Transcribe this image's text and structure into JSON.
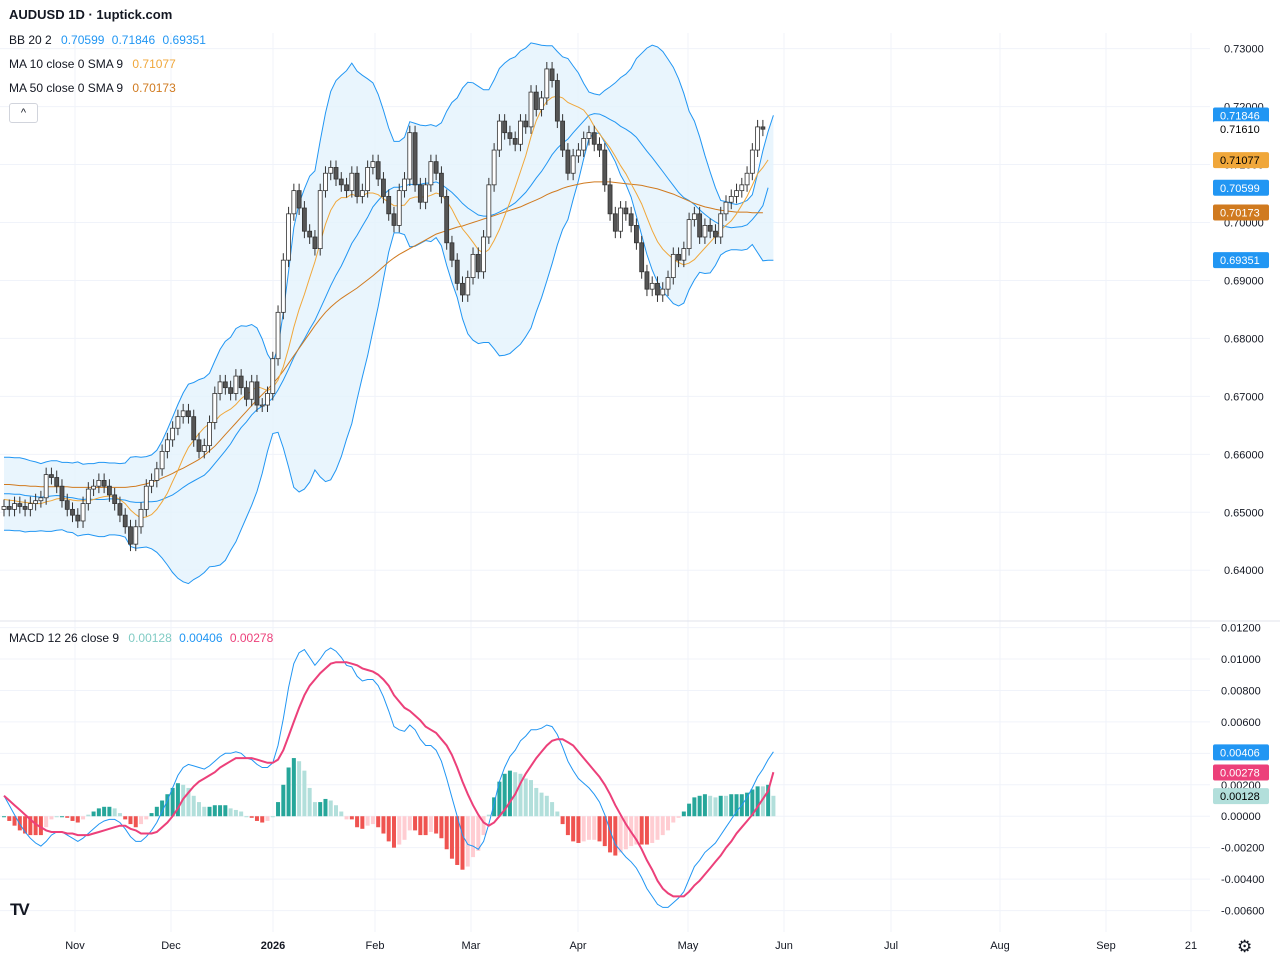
{
  "header": {
    "title": "AUDUSD 1D · 1uptick.com"
  },
  "legend": {
    "bb": {
      "label": "BB 20 2",
      "basis": "0.70599",
      "upper": "0.71846",
      "lower": "0.69351"
    },
    "ma10": {
      "label": "MA 10 close 0 SMA 9",
      "value": "0.71077"
    },
    "ma50": {
      "label": "MA 50 close 0 SMA 9",
      "value": "0.70173"
    },
    "macd": {
      "label": "MACD 12 26 close 9",
      "hist": "0.00128",
      "macd": "0.00406",
      "signal": "0.00278"
    }
  },
  "colors": {
    "up": "#26a69a",
    "down": "#ef5350",
    "candle_up": "#ffffff",
    "candle_down": "#555555",
    "bb_line": "#2196f3",
    "bb_fill": "#e3f2fd",
    "ma10": "#f0a73a",
    "ma50": "#d07a1f",
    "macd_line": "#2196f3",
    "signal_line": "#ec407a",
    "price_label": "#000000"
  },
  "icons": {
    "collapse": "chevron-up-icon",
    "settings": "gear-icon",
    "logo": "tradingview-logo"
  },
  "logo_text": "TV",
  "collapse_glyph": "^",
  "settings_glyph": "⚙",
  "chart_data": {
    "type": "candlestick",
    "symbol": "AUDUSD",
    "interval": "1D",
    "x_labels": [
      "Nov",
      "Dec",
      "2026",
      "Feb",
      "Mar",
      "Apr",
      "May",
      "Jun",
      "Jul",
      "Aug",
      "Sep",
      "21"
    ],
    "price_axis": {
      "range": [
        0.634,
        0.7327
      ],
      "ticks": [
        "0.73000",
        "0.72000",
        "0.71000",
        "0.70000",
        "0.69000",
        "0.68000",
        "0.67000",
        "0.66000",
        "0.65000",
        "0.64000"
      ]
    },
    "last_price": "0.71610",
    "price_labels": [
      {
        "name": "bb-upper",
        "value": "0.71846"
      },
      {
        "name": "last",
        "value": "0.71610"
      },
      {
        "name": "ma10",
        "value": "0.71077"
      },
      {
        "name": "bb-basis",
        "value": "0.70599"
      },
      {
        "name": "ma50",
        "value": "0.70173"
      },
      {
        "name": "bb-lower",
        "value": "0.69351"
      }
    ],
    "closes": [
      0.651,
      0.6505,
      0.6515,
      0.651,
      0.6505,
      0.6515,
      0.652,
      0.6525,
      0.6565,
      0.656,
      0.6545,
      0.652,
      0.6505,
      0.6495,
      0.6485,
      0.6515,
      0.654,
      0.6545,
      0.6555,
      0.6545,
      0.653,
      0.6515,
      0.6495,
      0.6475,
      0.6445,
      0.6475,
      0.6505,
      0.6545,
      0.6555,
      0.6575,
      0.6605,
      0.6625,
      0.6645,
      0.6665,
      0.6675,
      0.6665,
      0.6625,
      0.6605,
      0.6615,
      0.6655,
      0.6705,
      0.6725,
      0.6715,
      0.6705,
      0.6735,
      0.6715,
      0.6695,
      0.6725,
      0.6685,
      0.6685,
      0.6705,
      0.6765,
      0.6845,
      0.6935,
      0.7015,
      0.7055,
      0.7025,
      0.6985,
      0.6975,
      0.6955,
      0.7055,
      0.7085,
      0.7095,
      0.7075,
      0.7065,
      0.7055,
      0.7085,
      0.7045,
      0.7055,
      0.7095,
      0.7105,
      0.7075,
      0.7045,
      0.7015,
      0.6995,
      0.7055,
      0.7075,
      0.7155,
      0.7065,
      0.7035,
      0.7065,
      0.7105,
      0.7085,
      0.7045,
      0.6965,
      0.6935,
      0.6895,
      0.6875,
      0.6905,
      0.6945,
      0.6915,
      0.6975,
      0.7065,
      0.7125,
      0.7175,
      0.7155,
      0.7145,
      0.7135,
      0.7175,
      0.7165,
      0.7225,
      0.7195,
      0.7215,
      0.7265,
      0.7245,
      0.7175,
      0.7125,
      0.7085,
      0.7115,
      0.7125,
      0.7145,
      0.7155,
      0.7135,
      0.7125,
      0.7065,
      0.7015,
      0.6985,
      0.7025,
      0.7015,
      0.6995,
      0.6965,
      0.6915,
      0.6885,
      0.6895,
      0.6875,
      0.6885,
      0.6905,
      0.6945,
      0.6935,
      0.6955,
      0.7005,
      0.7015,
      0.6975,
      0.6995,
      0.6985,
      0.6975,
      0.7015,
      0.7035,
      0.7045,
      0.7055,
      0.7065,
      0.7085,
      0.7125,
      0.7165,
      0.7161
    ],
    "basis_line": [
      0.6532,
      0.6532,
      0.6531,
      0.6531,
      0.6529,
      0.6528,
      0.6527,
      0.6526,
      0.6527,
      0.6528,
      0.6529,
      0.6528,
      0.6526,
      0.6525,
      0.6523,
      0.6522,
      0.6523,
      0.6522,
      0.6522,
      0.6522,
      0.6523,
      0.6523,
      0.6522,
      0.6521,
      0.6518,
      0.6517,
      0.6517,
      0.6518,
      0.6518,
      0.6519,
      0.6522,
      0.6526,
      0.653,
      0.6536,
      0.6543,
      0.6549,
      0.6554,
      0.6559,
      0.6564,
      0.6573,
      0.6584,
      0.6595,
      0.6606,
      0.6618,
      0.6633,
      0.6646,
      0.6656,
      0.6668,
      0.6677,
      0.6683,
      0.6689,
      0.6697,
      0.6711,
      0.6728,
      0.6747,
      0.6767,
      0.6784,
      0.6799,
      0.6816,
      0.6831,
      0.6851,
      0.6871,
      0.6891,
      0.6909,
      0.6925,
      0.6944,
      0.6964,
      0.6978,
      0.6994,
      0.7009,
      0.7027,
      0.7038,
      0.7048,
      0.7056,
      0.7061,
      0.7061,
      0.7063,
      0.7066,
      0.7065,
      0.7066,
      0.7068,
      0.7068,
      0.707,
      0.7066,
      0.7059,
      0.7052,
      0.7043,
      0.7033,
      0.7025,
      0.7019,
      0.7013,
      0.7011,
      0.7011,
      0.7014,
      0.7018,
      0.7023,
      0.7028,
      0.7034,
      0.7043,
      0.7052,
      0.7064,
      0.7077,
      0.7088,
      0.7102,
      0.7117,
      0.7128,
      0.7137,
      0.7144,
      0.7155,
      0.7165,
      0.7175,
      0.7185,
      0.7188,
      0.7187,
      0.7183,
      0.7178,
      0.7173,
      0.7166,
      0.7161,
      0.7155,
      0.7147,
      0.7135,
      0.7123,
      0.7112,
      0.71,
      0.7088,
      0.7076,
      0.7064,
      0.7052,
      0.7043,
      0.7038,
      0.7031,
      0.7022,
      0.7014,
      0.7007,
      0.7001,
      0.6996,
      0.6993,
      0.6991,
      0.6992,
      0.6993,
      0.6996,
      0.7005,
      0.7016,
      0.7029,
      0.706
    ],
    "bb_upper": [
      0.6595,
      0.6595,
      0.6594,
      0.6594,
      0.6592,
      0.6589,
      0.6587,
      0.6584,
      0.6587,
      0.6589,
      0.6589,
      0.6586,
      0.6586,
      0.6585,
      0.6587,
      0.6583,
      0.6584,
      0.6584,
      0.6586,
      0.6586,
      0.6585,
      0.6585,
      0.6584,
      0.6585,
      0.6595,
      0.6596,
      0.6595,
      0.6596,
      0.6599,
      0.6607,
      0.6623,
      0.6643,
      0.6664,
      0.6686,
      0.6706,
      0.6721,
      0.6724,
      0.6729,
      0.6732,
      0.674,
      0.6761,
      0.6781,
      0.6795,
      0.6802,
      0.6817,
      0.6822,
      0.6821,
      0.6824,
      0.6818,
      0.6799,
      0.6773,
      0.6758,
      0.6784,
      0.6845,
      0.6916,
      0.6991,
      0.7033,
      0.7058,
      0.708,
      0.7089,
      0.7141,
      0.7189,
      0.7226,
      0.7245,
      0.7254,
      0.7262,
      0.7275,
      0.7261,
      0.7254,
      0.7248,
      0.7241,
      0.7221,
      0.7194,
      0.7163,
      0.714,
      0.714,
      0.7147,
      0.7174,
      0.7171,
      0.7168,
      0.7167,
      0.7169,
      0.7166,
      0.7172,
      0.7192,
      0.7207,
      0.7215,
      0.7232,
      0.7242,
      0.7241,
      0.7235,
      0.7229,
      0.7229,
      0.7246,
      0.7266,
      0.7275,
      0.7282,
      0.7286,
      0.7296,
      0.7301,
      0.731,
      0.7308,
      0.7306,
      0.7305,
      0.7305,
      0.7295,
      0.7286,
      0.7283,
      0.727,
      0.7258,
      0.724,
      0.7225,
      0.7222,
      0.722,
      0.7228,
      0.7234,
      0.7241,
      0.725,
      0.7256,
      0.7266,
      0.7283,
      0.7292,
      0.7301,
      0.7306,
      0.7303,
      0.7295,
      0.7282,
      0.7268,
      0.7248,
      0.7223,
      0.7192,
      0.7175,
      0.7148,
      0.7116,
      0.7087,
      0.706,
      0.7038,
      0.7036,
      0.7033,
      0.7031,
      0.7034,
      0.7038,
      0.7048,
      0.7084,
      0.7124,
      0.7157,
      0.7185
    ],
    "bb_lower": [
      0.6469,
      0.6469,
      0.6468,
      0.6468,
      0.6466,
      0.6467,
      0.6467,
      0.6468,
      0.6467,
      0.6467,
      0.6469,
      0.647,
      0.6466,
      0.6465,
      0.6459,
      0.6461,
      0.6462,
      0.646,
      0.6458,
      0.6458,
      0.6461,
      0.6461,
      0.646,
      0.6457,
      0.6441,
      0.6438,
      0.6439,
      0.644,
      0.6437,
      0.6431,
      0.6421,
      0.6409,
      0.6396,
      0.6386,
      0.638,
      0.6377,
      0.6384,
      0.6389,
      0.6396,
      0.6406,
      0.6407,
      0.6409,
      0.6417,
      0.6434,
      0.6449,
      0.647,
      0.6491,
      0.6512,
      0.6536,
      0.6567,
      0.6605,
      0.6636,
      0.6638,
      0.6611,
      0.6578,
      0.6543,
      0.6535,
      0.654,
      0.6552,
      0.6573,
      0.6561,
      0.6553,
      0.6556,
      0.6573,
      0.6596,
      0.6626,
      0.6653,
      0.6695,
      0.6734,
      0.677,
      0.6813,
      0.6855,
      0.6902,
      0.6949,
      0.6982,
      0.6982,
      0.6979,
      0.6958,
      0.6959,
      0.6964,
      0.6969,
      0.6967,
      0.6974,
      0.696,
      0.6926,
      0.6897,
      0.6871,
      0.6834,
      0.6808,
      0.6797,
      0.6791,
      0.6793,
      0.6793,
      0.6782,
      0.677,
      0.6771,
      0.6774,
      0.6782,
      0.679,
      0.6803,
      0.6818,
      0.6846,
      0.687,
      0.6899,
      0.6929,
      0.6961,
      0.6988,
      0.7005,
      0.704,
      0.7072,
      0.711,
      0.7145,
      0.7154,
      0.7154,
      0.7138,
      0.7122,
      0.7105,
      0.7082,
      0.7066,
      0.7044,
      0.7011,
      0.6978,
      0.6945,
      0.6918,
      0.6897,
      0.6881,
      0.6871,
      0.686,
      0.6856,
      0.6861,
      0.6884,
      0.6901,
      0.6914,
      0.6912,
      0.6913,
      0.6926,
      0.6944,
      0.695,
      0.6953,
      0.6953,
      0.6952,
      0.6954,
      0.6962,
      0.6948,
      0.6934,
      0.6935,
      0.6935
    ],
    "ma10_line": [
      0.6522,
      0.6521,
      0.652,
      0.6518,
      0.6517,
      0.6516,
      0.6515,
      0.6515,
      0.6518,
      0.652,
      0.6523,
      0.6524,
      0.6523,
      0.6521,
      0.652,
      0.652,
      0.652,
      0.6522,
      0.6525,
      0.6527,
      0.6528,
      0.6527,
      0.6522,
      0.6515,
      0.6504,
      0.6496,
      0.649,
      0.6492,
      0.6496,
      0.6505,
      0.6518,
      0.6533,
      0.6553,
      0.6572,
      0.6594,
      0.6612,
      0.6624,
      0.6636,
      0.6646,
      0.6653,
      0.6657,
      0.6667,
      0.6673,
      0.6678,
      0.6686,
      0.6696,
      0.6703,
      0.671,
      0.6717,
      0.6714,
      0.671,
      0.6715,
      0.6728,
      0.6751,
      0.6783,
      0.6819,
      0.685,
      0.6876,
      0.6905,
      0.6932,
      0.6965,
      0.6997,
      0.7021,
      0.7036,
      0.7043,
      0.7043,
      0.7049,
      0.7045,
      0.7046,
      0.7051,
      0.7051,
      0.7048,
      0.7041,
      0.7035,
      0.7029,
      0.7029,
      0.703,
      0.7041,
      0.7044,
      0.7044,
      0.7044,
      0.7047,
      0.7051,
      0.7048,
      0.7037,
      0.7023,
      0.7005,
      0.6989,
      0.6978,
      0.6966,
      0.6953,
      0.6947,
      0.6953,
      0.6969,
      0.6988,
      0.7011,
      0.7035,
      0.7061,
      0.7088,
      0.7115,
      0.7148,
      0.7176,
      0.7195,
      0.7209,
      0.7216,
      0.7218,
      0.7215,
      0.7207,
      0.7203,
      0.7199,
      0.7194,
      0.7182,
      0.7166,
      0.7153,
      0.7141,
      0.7129,
      0.7114,
      0.7098,
      0.7084,
      0.7067,
      0.705,
      0.7032,
      0.7009,
      0.6986,
      0.6967,
      0.6954,
      0.6945,
      0.6937,
      0.6931,
      0.6927,
      0.693,
      0.6936,
      0.6946,
      0.6956,
      0.6966,
      0.6976,
      0.6987,
      0.6995,
      0.7003,
      0.7015,
      0.703,
      0.7045,
      0.7064,
      0.7084,
      0.7095,
      0.7108
    ],
    "ma50_line": [
      0.6548,
      0.6548,
      0.6547,
      0.6546,
      0.6546,
      0.6545,
      0.6545,
      0.6544,
      0.6544,
      0.6544,
      0.6544,
      0.6544,
      0.6544,
      0.6543,
      0.6543,
      0.6543,
      0.6543,
      0.6543,
      0.6543,
      0.6543,
      0.6543,
      0.6543,
      0.6543,
      0.6543,
      0.6544,
      0.6545,
      0.6547,
      0.6549,
      0.6552,
      0.6555,
      0.6559,
      0.6563,
      0.6567,
      0.6572,
      0.6576,
      0.6581,
      0.6586,
      0.6591,
      0.6598,
      0.6606,
      0.6614,
      0.6624,
      0.6634,
      0.6644,
      0.6654,
      0.6664,
      0.6674,
      0.6684,
      0.6694,
      0.6703,
      0.6712,
      0.6722,
      0.6732,
      0.6744,
      0.6757,
      0.677,
      0.6783,
      0.6796,
      0.6809,
      0.6822,
      0.6834,
      0.6845,
      0.6854,
      0.6862,
      0.6869,
      0.6875,
      0.6881,
      0.6887,
      0.6894,
      0.6901,
      0.6908,
      0.6916,
      0.6924,
      0.6932,
      0.6939,
      0.6945,
      0.695,
      0.6955,
      0.696,
      0.6965,
      0.697,
      0.6975,
      0.698,
      0.6983,
      0.6986,
      0.6989,
      0.6992,
      0.6994,
      0.6997,
      0.7,
      0.7003,
      0.7006,
      0.7009,
      0.7012,
      0.7015,
      0.7018,
      0.7021,
      0.7024,
      0.7027,
      0.7031,
      0.7035,
      0.7039,
      0.7043,
      0.7048,
      0.7052,
      0.7055,
      0.7059,
      0.7062,
      0.7064,
      0.7066,
      0.7068,
      0.7069,
      0.707,
      0.707,
      0.707,
      0.707,
      0.7069,
      0.7068,
      0.7067,
      0.7066,
      0.7065,
      0.7064,
      0.7062,
      0.706,
      0.7058,
      0.7055,
      0.7052,
      0.7049,
      0.7045,
      0.7041,
      0.7037,
      0.7033,
      0.703,
      0.7027,
      0.7025,
      0.7023,
      0.7021,
      0.702,
      0.7019,
      0.7018,
      0.7018,
      0.7018,
      0.7017,
      0.7017,
      0.7017
    ],
    "macd_axis": {
      "range": [
        -0.0066,
        0.0121
      ],
      "ticks": [
        "0.01200",
        "0.01000",
        "0.00800",
        "0.00600",
        "0.00400",
        "0.00200",
        "0.00000",
        "-0.00200",
        "-0.00400",
        "-0.00600"
      ]
    },
    "macd_labels": [
      {
        "name": "macd",
        "value": "0.00406"
      },
      {
        "name": "signal",
        "value": "0.00278"
      },
      {
        "name": "histogram",
        "value": "0.00128"
      }
    ],
    "macd_line": [
      0.0013,
      0.0007,
      0.0001,
      -0.0005,
      -0.001,
      -0.0014,
      -0.0017,
      -0.0019,
      -0.0016,
      -0.0012,
      -0.001,
      -0.001,
      -0.0012,
      -0.0014,
      -0.0016,
      -0.0014,
      -0.0011,
      -0.0008,
      -0.0005,
      -0.0003,
      -0.0002,
      -0.0002,
      -0.0004,
      -0.0008,
      -0.0013,
      -0.0016,
      -0.0016,
      -0.0013,
      -0.0009,
      -0.0004,
      0.0003,
      0.001,
      0.0018,
      0.0026,
      0.0031,
      0.0033,
      0.0032,
      0.0031,
      0.003,
      0.0032,
      0.0035,
      0.0038,
      0.004,
      0.004,
      0.0041,
      0.004,
      0.0037,
      0.0036,
      0.0033,
      0.0031,
      0.0031,
      0.0034,
      0.0045,
      0.0062,
      0.0082,
      0.0097,
      0.0104,
      0.0106,
      0.0101,
      0.0096,
      0.01,
      0.0105,
      0.0107,
      0.0105,
      0.0101,
      0.0096,
      0.0095,
      0.0089,
      0.0086,
      0.0087,
      0.0087,
      0.0083,
      0.0076,
      0.0067,
      0.0057,
      0.0055,
      0.0054,
      0.0058,
      0.0055,
      0.0049,
      0.0045,
      0.0045,
      0.0042,
      0.0035,
      0.0024,
      0.0012,
      0.0,
      -0.0012,
      -0.0018,
      -0.0019,
      -0.0021,
      -0.0016,
      -0.0005,
      0.0008,
      0.0022,
      0.0031,
      0.0038,
      0.0042,
      0.0048,
      0.0051,
      0.0055,
      0.0055,
      0.0056,
      0.0058,
      0.0057,
      0.0052,
      0.0044,
      0.0035,
      0.0029,
      0.0024,
      0.0021,
      0.0018,
      0.0014,
      0.0009,
      0.0001,
      -0.0009,
      -0.0018,
      -0.0022,
      -0.0026,
      -0.0029,
      -0.0033,
      -0.0039,
      -0.0046,
      -0.0051,
      -0.0056,
      -0.0058,
      -0.0058,
      -0.0055,
      -0.0052,
      -0.0048,
      -0.004,
      -0.0032,
      -0.0028,
      -0.0023,
      -0.002,
      -0.0017,
      -0.0012,
      -0.0007,
      -0.0002,
      0.0003,
      0.0007,
      0.0012,
      0.0018,
      0.0025,
      0.003,
      0.0036,
      0.0041
    ],
    "signal_line": [
      0.0013,
      0.001,
      0.0007,
      0.0004,
      0.0001,
      -0.0002,
      -0.0005,
      -0.0007,
      -0.0009,
      -0.001,
      -0.001,
      -0.001,
      -0.0011,
      -0.0011,
      -0.0012,
      -0.0012,
      -0.0012,
      -0.0011,
      -0.001,
      -0.0009,
      -0.0008,
      -0.0007,
      -0.0006,
      -0.0006,
      -0.0008,
      -0.0009,
      -0.0011,
      -0.0011,
      -0.0011,
      -0.001,
      -0.0007,
      -0.0004,
      0.0,
      0.0005,
      0.0011,
      0.0015,
      0.0019,
      0.0022,
      0.0024,
      0.0026,
      0.0028,
      0.0031,
      0.0033,
      0.0035,
      0.0037,
      0.0037,
      0.0037,
      0.0037,
      0.0036,
      0.0035,
      0.0034,
      0.0034,
      0.0036,
      0.0042,
      0.0051,
      0.006,
      0.0069,
      0.0077,
      0.0083,
      0.0087,
      0.0091,
      0.0094,
      0.0097,
      0.0098,
      0.0098,
      0.0098,
      0.0097,
      0.0096,
      0.0094,
      0.0093,
      0.0092,
      0.009,
      0.0087,
      0.0083,
      0.0077,
      0.0073,
      0.0069,
      0.0067,
      0.0064,
      0.0061,
      0.0057,
      0.0055,
      0.0053,
      0.0049,
      0.0045,
      0.0039,
      0.0031,
      0.0022,
      0.0014,
      0.0007,
      0.0001,
      -0.0004,
      -0.0006,
      -0.0004,
      -0.0,
      0.0004,
      0.0009,
      0.0014,
      0.0021,
      0.0027,
      0.0032,
      0.0037,
      0.0041,
      0.0045,
      0.0048,
      0.0049,
      0.0049,
      0.0047,
      0.0045,
      0.0041,
      0.0037,
      0.0033,
      0.0029,
      0.0025,
      0.002,
      0.0014,
      0.0007,
      0.0001,
      -0.0005,
      -0.001,
      -0.0015,
      -0.0021,
      -0.0028,
      -0.0034,
      -0.0041,
      -0.0046,
      -0.0049,
      -0.0051,
      -0.0051,
      -0.0051,
      -0.0048,
      -0.0044,
      -0.0041,
      -0.0037,
      -0.0033,
      -0.0029,
      -0.0025,
      -0.002,
      -0.0016,
      -0.0011,
      -0.0007,
      -0.0003,
      0.0001,
      0.0006,
      0.0011,
      0.0016,
      0.0028
    ]
  }
}
